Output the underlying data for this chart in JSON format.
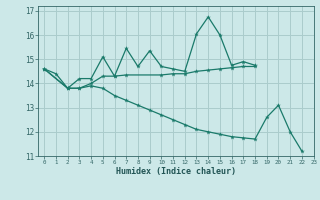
{
  "title": "",
  "xlabel": "Humidex (Indice chaleur)",
  "bg_color": "#cce8e8",
  "grid_color": "#aacccc",
  "line_color": "#1a7a6a",
  "xlim": [
    -0.5,
    23
  ],
  "ylim": [
    11,
    17.2
  ],
  "yticks": [
    11,
    12,
    13,
    14,
    15,
    16,
    17
  ],
  "xticks": [
    0,
    1,
    2,
    3,
    4,
    5,
    6,
    7,
    8,
    9,
    10,
    11,
    12,
    13,
    14,
    15,
    16,
    17,
    18,
    19,
    20,
    21,
    22,
    23
  ],
  "series": [
    {
      "x": [
        0,
        1,
        2,
        3,
        4,
        5,
        6,
        7,
        8,
        9,
        10,
        11,
        12,
        13,
        14,
        15,
        16,
        17,
        18
      ],
      "y": [
        14.6,
        14.4,
        13.8,
        14.2,
        14.2,
        15.1,
        14.3,
        15.45,
        14.7,
        15.35,
        14.7,
        14.6,
        14.5,
        16.05,
        16.75,
        16.0,
        14.75,
        14.9,
        14.75
      ]
    },
    {
      "x": [
        0,
        2,
        3,
        4,
        5,
        6,
        7,
        10,
        11,
        12,
        13,
        14,
        15,
        16,
        17,
        18
      ],
      "y": [
        14.6,
        13.8,
        13.8,
        14.0,
        14.3,
        14.3,
        14.35,
        14.35,
        14.4,
        14.4,
        14.5,
        14.55,
        14.6,
        14.65,
        14.7,
        14.7
      ]
    },
    {
      "x": [
        0,
        2,
        3,
        4,
        5,
        6,
        7,
        8,
        9,
        10,
        11,
        12,
        13,
        14,
        15,
        16,
        17,
        18,
        19,
        20,
        21,
        22
      ],
      "y": [
        14.6,
        13.8,
        13.8,
        13.9,
        13.8,
        13.5,
        13.3,
        13.1,
        12.9,
        12.7,
        12.5,
        12.3,
        12.1,
        12.0,
        11.9,
        11.8,
        11.75,
        11.7,
        12.6,
        13.1,
        12.0,
        11.2
      ]
    }
  ]
}
